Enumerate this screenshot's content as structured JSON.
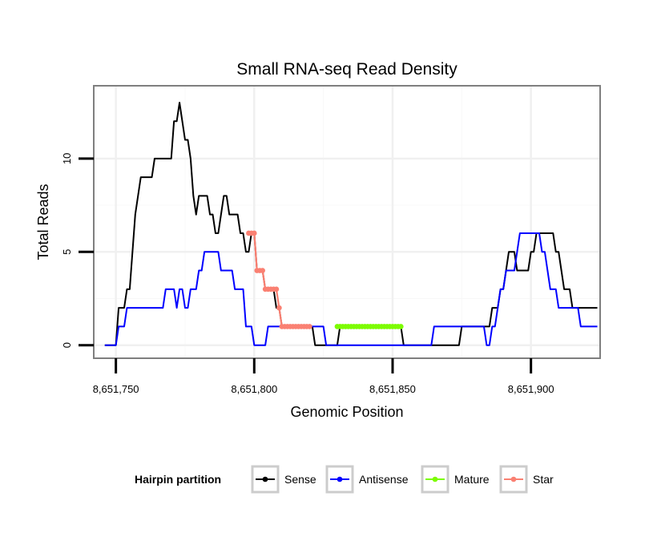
{
  "chart_data": {
    "type": "line",
    "title": "Small RNA-seq Read Density",
    "xlabel": "Genomic Position",
    "ylabel": "Total Reads",
    "xlim": [
      8651742,
      8651925
    ],
    "ylim": [
      -0.7,
      13.9
    ],
    "xticks": [
      8651750,
      8651800,
      8651850,
      8651900
    ],
    "xtick_labels": [
      "8,651,750",
      "8,651,800",
      "8,651,850",
      "8,651,900"
    ],
    "yticks": [
      0,
      5,
      10
    ],
    "ytick_labels": [
      "0",
      "5",
      "10"
    ],
    "grid": true,
    "legend": {
      "title": "Hairpin partition",
      "position": "bottom",
      "entries": [
        {
          "label": "Sense",
          "color": "#000000"
        },
        {
          "label": "Antisense",
          "color": "#0000ff"
        },
        {
          "label": "Mature",
          "color": "#7cfc00"
        },
        {
          "label": "Star",
          "color": "#fa8072"
        }
      ]
    },
    "series": [
      {
        "name": "Sense",
        "color": "#000000",
        "marker": false,
        "x": [
          8651746,
          8651750,
          8651751,
          8651752,
          8651753,
          8651754,
          8651755,
          8651756,
          8651757,
          8651758,
          8651759,
          8651760,
          8651761,
          8651762,
          8651763,
          8651764,
          8651765,
          8651766,
          8651767,
          8651768,
          8651769,
          8651770,
          8651771,
          8651772,
          8651773,
          8651774,
          8651775,
          8651776,
          8651777,
          8651778,
          8651779,
          8651780,
          8651781,
          8651782,
          8651783,
          8651784,
          8651785,
          8651786,
          8651787,
          8651788,
          8651789,
          8651790,
          8651791,
          8651792,
          8651793,
          8651794,
          8651795,
          8651796,
          8651797,
          8651798,
          8651799,
          8651800,
          8651801,
          8651802,
          8651803,
          8651804,
          8651805,
          8651806,
          8651807,
          8651808,
          8651809,
          8651810,
          8651811,
          8651812,
          8651813,
          8651814,
          8651815,
          8651816,
          8651817,
          8651818,
          8651819,
          8651820,
          8651821,
          8651822,
          8651830,
          8651831,
          8651853,
          8651854,
          8651874,
          8651875,
          8651885,
          8651886,
          8651887,
          8651888,
          8651889,
          8651890,
          8651891,
          8651892,
          8651893,
          8651894,
          8651895,
          8651896,
          8651897,
          8651898,
          8651899,
          8651900,
          8651901,
          8651902,
          8651903,
          8651904,
          8651905,
          8651906,
          8651907,
          8651908,
          8651909,
          8651910,
          8651911,
          8651912,
          8651913,
          8651914,
          8651915,
          8651916,
          8651917,
          8651918,
          8651919,
          8651920,
          8651921,
          8651922,
          8651923,
          8651924
        ],
        "y": [
          0,
          0,
          2,
          2,
          2,
          3,
          3,
          5,
          7,
          8,
          9,
          9,
          9,
          9,
          9,
          10,
          10,
          10,
          10,
          10,
          10,
          10,
          12,
          12,
          13,
          12,
          11,
          11,
          10,
          8,
          7,
          8,
          8,
          8,
          8,
          7,
          7,
          6,
          6,
          7,
          8,
          8,
          7,
          7,
          7,
          7,
          6,
          6,
          5,
          5,
          6,
          6,
          4,
          4,
          4,
          3,
          3,
          3,
          3,
          2,
          2,
          1,
          1,
          1,
          1,
          1,
          1,
          1,
          1,
          1,
          1,
          1,
          1,
          0,
          0,
          1,
          1,
          0,
          0,
          1,
          1,
          2,
          2,
          2,
          3,
          3,
          4,
          5,
          5,
          5,
          4,
          4,
          4,
          4,
          4,
          5,
          5,
          6,
          6,
          6,
          6,
          6,
          6,
          6,
          5,
          5,
          4,
          3,
          3,
          3,
          2,
          2,
          2,
          2,
          2,
          2,
          2,
          2,
          2,
          2
        ]
      },
      {
        "name": "Antisense",
        "color": "#0000ff",
        "marker": false,
        "x": [
          8651746,
          8651750,
          8651751,
          8651752,
          8651753,
          8651754,
          8651755,
          8651764,
          8651765,
          8651766,
          8651767,
          8651768,
          8651769,
          8651770,
          8651771,
          8651772,
          8651773,
          8651774,
          8651775,
          8651776,
          8651777,
          8651778,
          8651779,
          8651780,
          8651781,
          8651782,
          8651783,
          8651784,
          8651785,
          8651786,
          8651787,
          8651788,
          8651789,
          8651790,
          8651791,
          8651792,
          8651793,
          8651794,
          8651795,
          8651796,
          8651797,
          8651798,
          8651799,
          8651800,
          8651801,
          8651802,
          8651803,
          8651804,
          8651805,
          8651806,
          8651807,
          8651808,
          8651809,
          8651810,
          8651811,
          8651812,
          8651813,
          8651814,
          8651815,
          8651816,
          8651817,
          8651818,
          8651819,
          8651820,
          8651821,
          8651822,
          8651823,
          8651824,
          8651825,
          8651826,
          8651827,
          8651828,
          8651829,
          8651830,
          8651864,
          8651865,
          8651866,
          8651867,
          8651868,
          8651869,
          8651882,
          8651883,
          8651884,
          8651885,
          8651886,
          8651887,
          8651888,
          8651889,
          8651890,
          8651891,
          8651892,
          8651893,
          8651894,
          8651895,
          8651896,
          8651897,
          8651898,
          8651899,
          8651900,
          8651901,
          8651902,
          8651903,
          8651904,
          8651905,
          8651906,
          8651907,
          8651908,
          8651909,
          8651910,
          8651911,
          8651912,
          8651913,
          8651914,
          8651915,
          8651916,
          8651917,
          8651918,
          8651919,
          8651920,
          8651921,
          8651922,
          8651923,
          8651924
        ],
        "y": [
          0,
          0,
          1,
          1,
          1,
          2,
          2,
          2,
          2,
          2,
          2,
          3,
          3,
          3,
          3,
          2,
          3,
          3,
          2,
          2,
          3,
          3,
          3,
          4,
          4,
          5,
          5,
          5,
          5,
          5,
          5,
          4,
          4,
          4,
          4,
          4,
          3,
          3,
          3,
          3,
          1,
          1,
          1,
          0,
          0,
          0,
          0,
          0,
          1,
          1,
          1,
          1,
          1,
          1,
          1,
          1,
          1,
          1,
          1,
          1,
          1,
          1,
          1,
          1,
          1,
          1,
          1,
          1,
          1,
          0,
          0,
          0,
          0,
          0,
          0,
          1,
          1,
          1,
          1,
          1,
          1,
          1,
          0,
          0,
          1,
          1,
          2,
          3,
          3,
          4,
          4,
          4,
          4,
          5,
          6,
          6,
          6,
          6,
          6,
          6,
          6,
          6,
          5,
          5,
          4,
          3,
          3,
          3,
          2,
          2,
          2,
          2,
          2,
          2,
          2,
          2,
          1,
          1,
          1,
          1,
          1,
          1,
          1
        ]
      },
      {
        "name": "Mature",
        "color": "#7cfc00",
        "marker": true,
        "x": [
          8651830,
          8651831,
          8651832,
          8651833,
          8651834,
          8651835,
          8651836,
          8651837,
          8651838,
          8651839,
          8651840,
          8651841,
          8651842,
          8651843,
          8651844,
          8651845,
          8651846,
          8651847,
          8651848,
          8651849,
          8651850,
          8651851,
          8651852,
          8651853
        ],
        "y": [
          1,
          1,
          1,
          1,
          1,
          1,
          1,
          1,
          1,
          1,
          1,
          1,
          1,
          1,
          1,
          1,
          1,
          1,
          1,
          1,
          1,
          1,
          1,
          1
        ]
      },
      {
        "name": "Star",
        "color": "#fa8072",
        "marker": true,
        "x": [
          8651798,
          8651799,
          8651800,
          8651801,
          8651802,
          8651803,
          8651804,
          8651805,
          8651806,
          8651807,
          8651808,
          8651809,
          8651810,
          8651811,
          8651812,
          8651813,
          8651814,
          8651815,
          8651816,
          8651817,
          8651818,
          8651819,
          8651820
        ],
        "y": [
          6,
          6,
          6,
          4,
          4,
          4,
          3,
          3,
          3,
          3,
          3,
          2,
          1,
          1,
          1,
          1,
          1,
          1,
          1,
          1,
          1,
          1,
          1
        ]
      }
    ]
  }
}
